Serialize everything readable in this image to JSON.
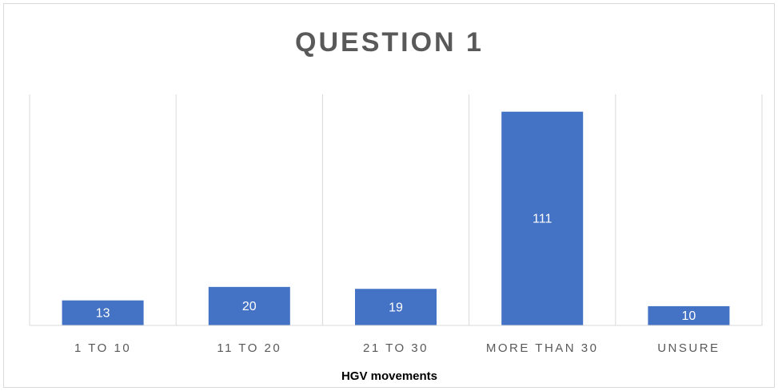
{
  "chart_data": {
    "type": "bar",
    "title": "QUESTION 1",
    "x_label": "HGV movements",
    "categories": [
      "1 TO 10",
      "11 TO 20",
      "21 TO 30",
      "MORE THAN 30",
      "UNSURE"
    ],
    "values": [
      13,
      20,
      19,
      111,
      10
    ],
    "color": "#4472c4",
    "ylim": [
      0,
      120
    ],
    "data_labels": true
  }
}
